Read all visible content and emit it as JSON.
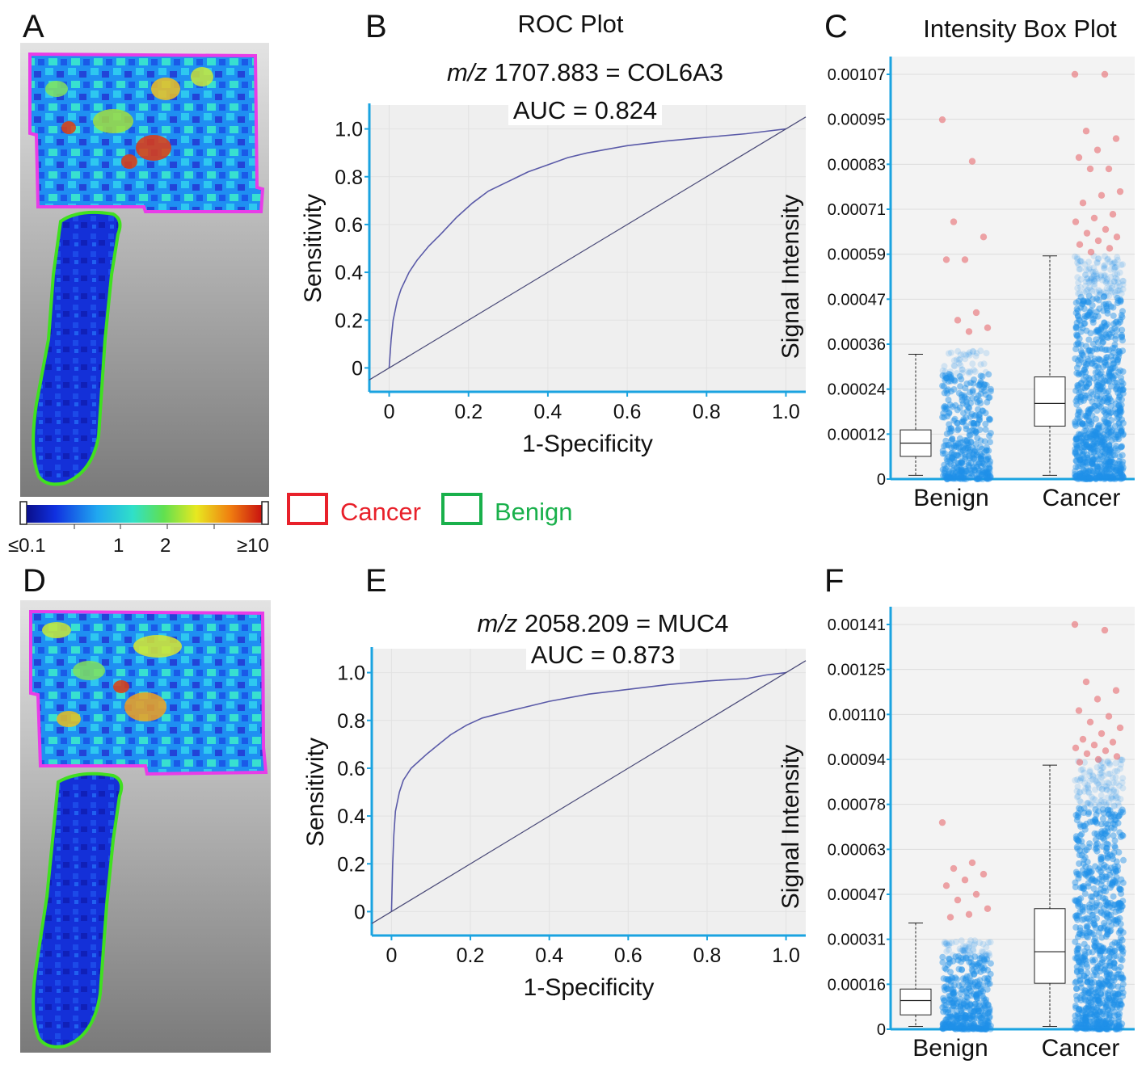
{
  "panels": {
    "A": "A",
    "B": "B",
    "C": "C",
    "D": "D",
    "E": "E",
    "F": "F"
  },
  "colorbar": {
    "ticks": [
      "≤0.1",
      "1",
      "2",
      "≥10"
    ]
  },
  "legend": {
    "cancer": "Cancer",
    "benign": "Benign",
    "cancer_color": "#e8202a",
    "benign_color": "#19b04b"
  },
  "chart_data": [
    {
      "id": "B",
      "type": "line",
      "title": "ROC Plot",
      "subtitle_italic": "m/z",
      "subtitle_rest": "1707.883 = COL6A3",
      "auc": "AUC = 0.824",
      "xlabel": "1-Specificity",
      "ylabel": "Sensitivity",
      "x_ticks": [
        "0",
        "0.2",
        "0.4",
        "0.6",
        "0.8",
        "1.0"
      ],
      "y_ticks": [
        "0",
        "0.2",
        "0.4",
        "0.6",
        "0.8",
        "1.0"
      ],
      "xlim": [
        -0.05,
        1.05
      ],
      "ylim": [
        -0.1,
        1.1
      ],
      "series": [
        {
          "name": "ROC",
          "x": [
            0,
            0.005,
            0.01,
            0.02,
            0.03,
            0.05,
            0.07,
            0.1,
            0.13,
            0.17,
            0.21,
            0.25,
            0.3,
            0.35,
            0.4,
            0.45,
            0.5,
            0.55,
            0.6,
            0.7,
            0.8,
            0.9,
            0.95,
            1.0
          ],
          "y": [
            0,
            0.12,
            0.2,
            0.28,
            0.33,
            0.4,
            0.45,
            0.51,
            0.56,
            0.63,
            0.69,
            0.74,
            0.78,
            0.82,
            0.85,
            0.88,
            0.9,
            0.915,
            0.93,
            0.95,
            0.965,
            0.98,
            0.99,
            1.0
          ]
        },
        {
          "name": "diagonal",
          "x": [
            -0.05,
            1.05
          ],
          "y": [
            -0.05,
            1.05
          ]
        }
      ]
    },
    {
      "id": "C",
      "type": "box",
      "title": "Intensity Box Plot",
      "ylabel": "Signal Intensity",
      "categories": [
        "Benign",
        "Cancer"
      ],
      "y_ticks": [
        "0",
        "0.00012",
        "0.00024",
        "0.00036",
        "0.00047",
        "0.00059",
        "0.00071",
        "0.00083",
        "0.00095",
        "0.00107"
      ],
      "ylim": [
        0,
        0.00107
      ],
      "boxes": [
        {
          "name": "Benign",
          "min": 1e-05,
          "q1": 6e-05,
          "median": 9.5e-05,
          "q3": 0.00013,
          "max": 0.00033
        },
        {
          "name": "Cancer",
          "min": 1e-05,
          "q1": 0.00014,
          "median": 0.0002,
          "q3": 0.00027,
          "max": 0.00059
        }
      ],
      "outliers": {
        "Benign": [
          0.00095,
          0.00084,
          0.00068,
          0.00064,
          0.00058,
          0.00058,
          0.00044,
          0.00042,
          0.0004,
          0.00039
        ],
        "Cancer": [
          0.00107,
          0.00107,
          0.00092,
          0.0009,
          0.00087,
          0.00085,
          0.00082,
          0.00082,
          0.00076,
          0.00075,
          0.00073,
          0.0007,
          0.00069,
          0.00068,
          0.00066,
          0.00065,
          0.00064,
          0.00063,
          0.00062,
          0.00061,
          0.0006
        ]
      },
      "points_max": {
        "Benign": 0.00034,
        "Cancer": 0.00059
      }
    },
    {
      "id": "E",
      "type": "line",
      "subtitle_italic": "m/z",
      "subtitle_rest": "2058.209 = MUC4",
      "auc": "AUC = 0.873",
      "xlabel": "1-Specificity",
      "ylabel": "Sensitivity",
      "x_ticks": [
        "0",
        "0.2",
        "0.4",
        "0.6",
        "0.8",
        "1.0"
      ],
      "y_ticks": [
        "0",
        "0.2",
        "0.4",
        "0.6",
        "0.8",
        "1.0"
      ],
      "xlim": [
        -0.05,
        1.05
      ],
      "ylim": [
        -0.1,
        1.1
      ],
      "series": [
        {
          "name": "ROC",
          "x": [
            0,
            0.003,
            0.006,
            0.01,
            0.02,
            0.03,
            0.05,
            0.07,
            0.09,
            0.12,
            0.15,
            0.19,
            0.23,
            0.3,
            0.4,
            0.5,
            0.6,
            0.7,
            0.8,
            0.9,
            0.95,
            1.0
          ],
          "y": [
            0,
            0.2,
            0.32,
            0.42,
            0.5,
            0.55,
            0.6,
            0.63,
            0.66,
            0.7,
            0.74,
            0.78,
            0.81,
            0.84,
            0.88,
            0.91,
            0.93,
            0.95,
            0.965,
            0.975,
            0.99,
            1.0
          ]
        },
        {
          "name": "diagonal",
          "x": [
            -0.05,
            1.05
          ],
          "y": [
            -0.05,
            1.05
          ]
        }
      ]
    },
    {
      "id": "F",
      "type": "box",
      "ylabel": "Signal Intensity",
      "categories": [
        "Benign",
        "Cancer"
      ],
      "y_ticks": [
        "0",
        "0.00016",
        "0.00031",
        "0.00047",
        "0.00063",
        "0.00078",
        "0.00094",
        "0.00110",
        "0.00125",
        "0.00141"
      ],
      "ylim": [
        0,
        0.00141
      ],
      "boxes": [
        {
          "name": "Benign",
          "min": 1e-05,
          "q1": 5e-05,
          "median": 0.0001,
          "q3": 0.00014,
          "max": 0.00037
        },
        {
          "name": "Cancer",
          "min": 1e-05,
          "q1": 0.00016,
          "median": 0.00027,
          "q3": 0.00042,
          "max": 0.00092
        }
      ],
      "outliers": {
        "Benign": [
          0.00072,
          0.00058,
          0.00056,
          0.00054,
          0.00052,
          0.0005,
          0.00047,
          0.00045,
          0.00042,
          0.0004,
          0.00039
        ],
        "Cancer": [
          0.00141,
          0.00139,
          0.00121,
          0.00118,
          0.00115,
          0.00111,
          0.00109,
          0.00107,
          0.00105,
          0.00103,
          0.00101,
          0.001,
          0.00099,
          0.00098,
          0.00097,
          0.00096,
          0.00095,
          0.00094,
          0.00093
        ]
      },
      "points_max": {
        "Benign": 0.00031,
        "Cancer": 0.00094
      }
    }
  ]
}
